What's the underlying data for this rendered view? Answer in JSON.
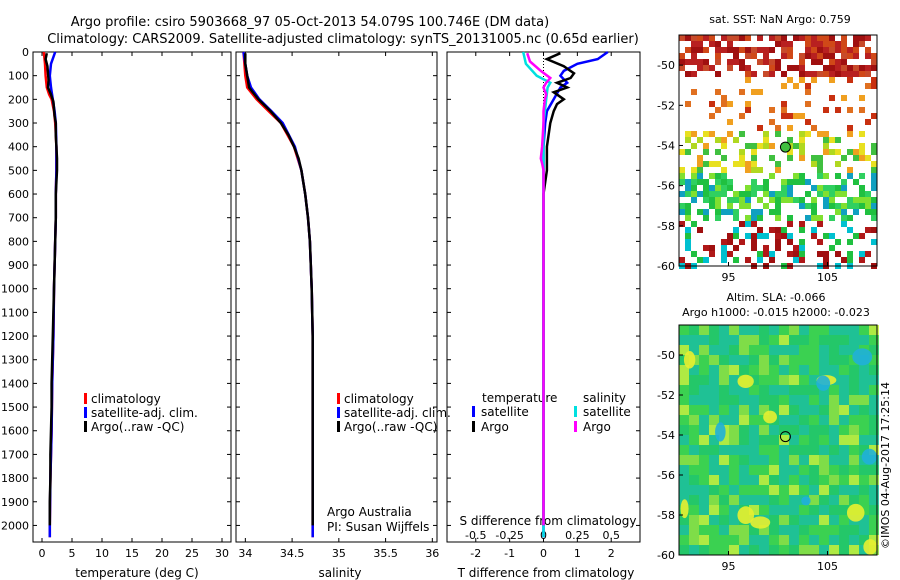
{
  "header": {
    "line1": "Argo profile: csiro 5903668_97 05-Oct-2013 54.079S 100.746E (DM data)",
    "line2": "Climatology: CARS2009. Satellite-adjusted climatology: synTS_20131005.nc (0.65d earlier)"
  },
  "colors": {
    "climatology": "#ff0000",
    "satellite": "#0000ff",
    "argo": "#000000",
    "sal_satellite": "#00e0e0",
    "sal_argo": "#ff00ff"
  },
  "chart_data": [
    {
      "type": "line",
      "id": "temperature",
      "xlabel": "temperature (deg C)",
      "xlim": [
        -1.5,
        31.5
      ],
      "xticks": [
        "0",
        "5",
        "10",
        "15",
        "20",
        "25",
        "30"
      ],
      "ylim": [
        0,
        2070
      ],
      "yticks": [
        "0",
        "100",
        "200",
        "300",
        "400",
        "500",
        "600",
        "700",
        "800",
        "900",
        "1000",
        "1100",
        "1200",
        "1300",
        "1400",
        "1500",
        "1600",
        "1700",
        "1800",
        "1900",
        "2000"
      ],
      "legend": [
        "climatology",
        "satellite-adj. clim.",
        "Argo(..raw -QC)"
      ],
      "legend_position": "lower-center",
      "series": [
        {
          "name": "climatology",
          "color_key": "climatology",
          "depth": [
            0,
            50,
            100,
            150,
            180,
            200,
            250,
            300,
            400,
            500,
            600,
            700,
            800,
            900,
            1000,
            1200,
            1400,
            1600,
            1800,
            2000,
            2050
          ],
          "values": [
            0.3,
            0.5,
            0.6,
            0.8,
            1.2,
            1.6,
            2.0,
            2.2,
            2.4,
            2.4,
            2.3,
            2.3,
            2.2,
            2.1,
            2.0,
            1.9,
            1.7,
            1.6,
            1.4,
            1.3,
            1.3
          ]
        },
        {
          "name": "satellite-adj. clim.",
          "color_key": "satellite",
          "depth": [
            0,
            50,
            100,
            150,
            200,
            250,
            300,
            400,
            500,
            600,
            700,
            800,
            900,
            1000,
            1200,
            1400,
            1600,
            1800,
            2000,
            2050
          ],
          "values": [
            2.2,
            1.5,
            1.3,
            1.5,
            1.8,
            2.1,
            2.3,
            2.4,
            2.4,
            2.3,
            2.3,
            2.2,
            2.1,
            2.0,
            1.9,
            1.7,
            1.6,
            1.4,
            1.3,
            1.3
          ]
        },
        {
          "name": "Argo(..raw -QC)",
          "color_key": "argo",
          "depth": [
            5,
            30,
            60,
            90,
            120,
            150,
            180,
            210,
            240,
            270,
            300,
            350,
            400,
            450,
            500,
            550,
            600,
            700,
            800,
            900,
            1000,
            1100,
            1200,
            1300,
            1400,
            1500,
            1600,
            1700,
            1800,
            1900,
            2000
          ],
          "values": [
            0.8,
            0.6,
            0.9,
            1.0,
            1.1,
            1.0,
            1.5,
            1.9,
            2.0,
            2.1,
            2.3,
            2.3,
            2.4,
            2.5,
            2.5,
            2.4,
            2.3,
            2.3,
            2.2,
            2.1,
            2.0,
            1.9,
            1.8,
            1.7,
            1.6,
            1.6,
            1.5,
            1.4,
            1.4,
            1.3,
            1.3
          ]
        }
      ]
    },
    {
      "type": "line",
      "id": "salinity",
      "xlabel": "salinity",
      "xlim": [
        33.9,
        36.05
      ],
      "xticks": [
        "34",
        "34.5",
        "35",
        "35.5",
        "36"
      ],
      "ylim": [
        0,
        2070
      ],
      "legend": [
        "climatology",
        "satellite-adj. clim.",
        "Argo(..raw -QC)"
      ],
      "legend_position": "lower-center",
      "annotation": [
        "Argo Australia",
        "PI: Susan Wijffels"
      ],
      "series": [
        {
          "name": "climatology",
          "color_key": "climatology",
          "depth": [
            0,
            50,
            100,
            150,
            200,
            250,
            300,
            400,
            500,
            600,
            700,
            800,
            900,
            1000,
            1200,
            1400,
            1600,
            1800,
            2000,
            2050
          ],
          "values": [
            33.98,
            33.99,
            34.0,
            34.02,
            34.12,
            34.25,
            34.38,
            34.52,
            34.6,
            34.64,
            34.67,
            34.69,
            34.7,
            34.71,
            34.72,
            34.72,
            34.72,
            34.72,
            34.72,
            34.72
          ]
        },
        {
          "name": "satellite-adj. clim.",
          "color_key": "satellite",
          "depth": [
            0,
            50,
            100,
            150,
            200,
            250,
            300,
            400,
            500,
            600,
            700,
            800,
            900,
            1000,
            1200,
            1400,
            1600,
            1800,
            2000,
            2050
          ],
          "values": [
            33.98,
            34.0,
            34.02,
            34.06,
            34.15,
            34.28,
            34.4,
            34.53,
            34.6,
            34.64,
            34.67,
            34.69,
            34.7,
            34.71,
            34.72,
            34.72,
            34.72,
            34.72,
            34.72,
            34.72
          ]
        },
        {
          "name": "Argo(..raw -QC)",
          "color_key": "argo",
          "depth": [
            5,
            50,
            100,
            150,
            200,
            250,
            300,
            350,
            400,
            450,
            500,
            600,
            700,
            800,
            900,
            1000,
            1200,
            1400,
            1600,
            1800,
            2000
          ],
          "values": [
            34.0,
            34.0,
            34.02,
            34.04,
            34.14,
            34.27,
            34.38,
            34.46,
            34.52,
            34.57,
            34.6,
            34.64,
            34.67,
            34.69,
            34.7,
            34.71,
            34.72,
            34.72,
            34.72,
            34.72,
            34.72
          ]
        }
      ]
    },
    {
      "type": "line",
      "id": "differences",
      "xlabel": "T difference from climatology",
      "xlabel2": "S difference from climatology",
      "xlim": [
        -2.85,
        2.85
      ],
      "xticks": [
        "-2",
        "-1",
        "0",
        "1",
        "2"
      ],
      "xticks2": [
        "-0.5",
        "-0.25",
        "0",
        "0.25",
        "0.5"
      ],
      "ylim": [
        0,
        2070
      ],
      "legend_headers": [
        "temperature",
        "salinity"
      ],
      "legend": [
        "satellite",
        "Argo",
        "satellite",
        "Argo"
      ],
      "series": [
        {
          "name": "T satellite",
          "color_key": "satellite",
          "depth": [
            0,
            30,
            50,
            80,
            100,
            130,
            150,
            200,
            250,
            300,
            400,
            500,
            600,
            800,
            1000,
            1500,
            2000,
            2050
          ],
          "values": [
            1.9,
            1.6,
            1.0,
            0.6,
            0.5,
            0.7,
            0.5,
            0.3,
            0.1,
            0.05,
            0.0,
            0.0,
            0.0,
            0.0,
            0.0,
            0.0,
            0.0,
            0.0
          ]
        },
        {
          "name": "T Argo",
          "color_key": "argo",
          "depth": [
            5,
            30,
            60,
            90,
            110,
            130,
            150,
            170,
            200,
            220,
            250,
            300,
            400,
            500,
            600,
            800,
            1000,
            1500,
            2000
          ],
          "values": [
            0.5,
            0.1,
            0.6,
            0.9,
            0.8,
            0.4,
            0.7,
            0.3,
            0.6,
            0.4,
            0.3,
            0.2,
            0.1,
            0.1,
            0.0,
            0.0,
            0.0,
            0.0,
            0.0
          ]
        },
        {
          "name": "S satellite",
          "color_key": "sal_satellite",
          "depth": [
            0,
            50,
            100,
            130,
            150,
            200,
            250,
            300,
            400,
            500,
            600,
            800,
            1000,
            1500,
            2000,
            2050
          ],
          "values": [
            -0.15,
            -0.13,
            -0.05,
            0.05,
            0.03,
            0.02,
            0.01,
            0.0,
            0.0,
            0.0,
            0.0,
            0.0,
            0.0,
            0.0,
            0.0,
            0.0
          ]
        },
        {
          "name": "S Argo",
          "color_key": "sal_argo",
          "depth": [
            5,
            40,
            80,
            110,
            130,
            150,
            180,
            200,
            250,
            300,
            400,
            450,
            470,
            500,
            600,
            800,
            1000,
            1500,
            2000
          ],
          "values": [
            -0.12,
            -0.1,
            -0.02,
            0.05,
            0.02,
            0.0,
            0.02,
            0.01,
            0.0,
            0.0,
            -0.01,
            -0.02,
            -0.01,
            0.0,
            0.0,
            0.0,
            0.0,
            0.0,
            0.0
          ]
        }
      ]
    },
    {
      "type": "heatmap",
      "id": "sst_map",
      "title": "sat. SST: NaN Argo: 0.759",
      "xticks": [
        "95",
        "105"
      ],
      "yticks": [
        "-50",
        "-52",
        "-54",
        "-56",
        "-58",
        "-60"
      ],
      "xlim": [
        90,
        110
      ],
      "ylim": [
        -60,
        -48.5
      ],
      "marker": {
        "lon": 100.75,
        "lat": -54.08
      }
    },
    {
      "type": "heatmap",
      "id": "sla_map",
      "title_line1": "Altim. SLA: -0.066",
      "title_line2": "Argo h1000: -0.015 h2000: -0.023",
      "xticks": [
        "95",
        "105"
      ],
      "yticks": [
        "-50",
        "-52",
        "-54",
        "-56",
        "-58",
        "-60"
      ],
      "xlim": [
        90,
        110
      ],
      "ylim": [
        -60,
        -48.5
      ],
      "marker": {
        "lon": 100.75,
        "lat": -54.08
      }
    }
  ],
  "watermark": "©IMOS 04-Aug-2017 17:25:14"
}
